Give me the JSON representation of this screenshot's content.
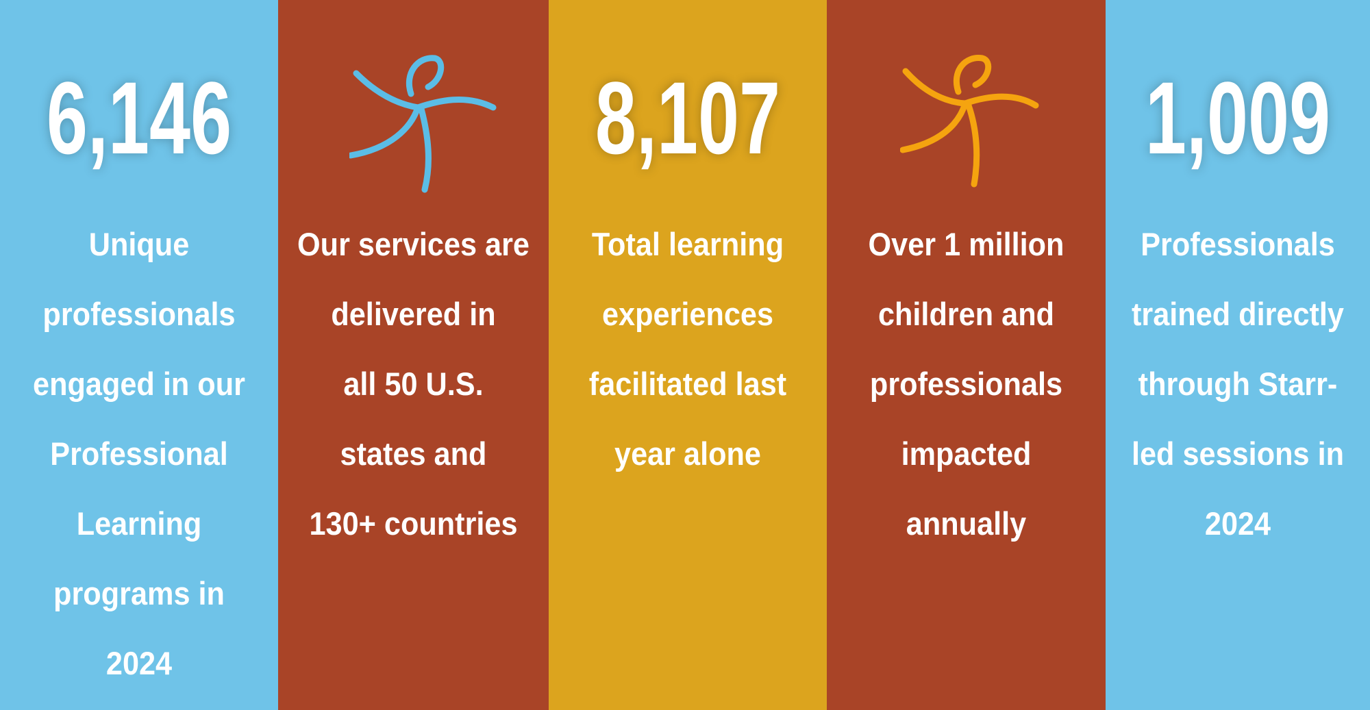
{
  "columns": [
    {
      "number": "6,146",
      "lines": [
        "Unique",
        "professionals",
        "engaged in our",
        "Professional",
        "Learning",
        "programs in",
        "2024"
      ]
    },
    {
      "lines": [
        "Our services are",
        "delivered in",
        "all 50 U.S.",
        "states and",
        "130+ countries"
      ]
    },
    {
      "number": "8,107",
      "lines": [
        "Total learning",
        "experiences",
        "facilitated last",
        "year alone"
      ]
    },
    {
      "lines": [
        "Over 1 million",
        "children and",
        "professionals",
        "impacted",
        "annually"
      ]
    },
    {
      "number": "1,009",
      "lines": [
        "Professionals",
        "trained directly",
        "through Starr-",
        "led sessions in",
        "2024"
      ]
    }
  ]
}
